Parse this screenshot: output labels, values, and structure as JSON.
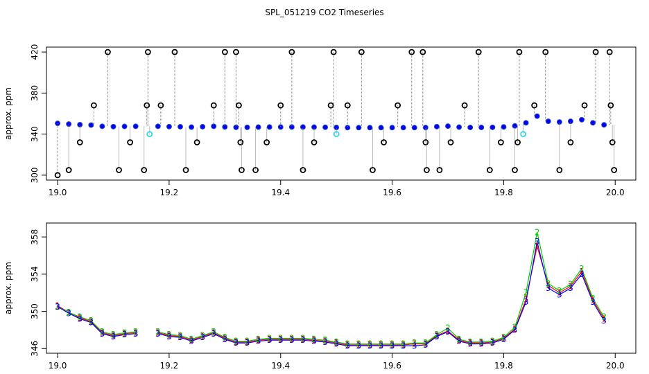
{
  "title": "SPL_051219  CO2 Timeseries",
  "chart_data": [
    {
      "type": "scatter",
      "ylabel": "approx. ppm",
      "xlim": [
        18.98,
        20.037
      ],
      "ylim": [
        295.2,
        424.8
      ],
      "xticks": [
        {
          "value": 19.0,
          "label": "19.0"
        },
        {
          "value": 19.2,
          "label": "19.2"
        },
        {
          "value": 19.4,
          "label": "19.4"
        },
        {
          "value": 19.6,
          "label": "19.6"
        },
        {
          "value": 19.8,
          "label": "19.8"
        },
        {
          "value": 20.0,
          "label": "20.0"
        }
      ],
      "yticks": [
        300,
        340,
        380,
        420
      ],
      "series": [
        {
          "color": "#0000ff",
          "marker": "filled",
          "x": [
            19.0,
            19.02,
            19.04,
            19.06,
            19.08,
            19.1,
            19.12,
            19.14,
            19.16,
            19.18,
            19.2,
            19.22,
            19.24,
            19.26,
            19.28,
            19.3,
            19.32,
            19.34,
            19.36,
            19.38,
            19.4,
            19.42,
            19.44,
            19.46,
            19.48,
            19.5,
            19.52,
            19.54,
            19.56,
            19.58,
            19.6,
            19.62,
            19.64,
            19.66,
            19.68,
            19.7,
            19.72,
            19.74,
            19.76,
            19.78,
            19.8,
            19.82,
            19.84,
            19.86,
            19.88,
            19.9,
            19.92,
            19.94,
            19.96,
            19.98
          ],
          "values": [
            350.5,
            349.8,
            349.2,
            348.8,
            347.6,
            347.3,
            347.5,
            347.6,
            null,
            347.6,
            347.3,
            347.2,
            346.8,
            347.2,
            347.6,
            347.0,
            346.6,
            346.6,
            346.8,
            346.9,
            346.9,
            346.9,
            346.9,
            346.8,
            346.7,
            346.5,
            346.3,
            346.3,
            346.3,
            346.3,
            346.3,
            346.3,
            346.3,
            346.4,
            347.3,
            347.8,
            346.8,
            346.5,
            346.5,
            346.6,
            347.0,
            348.0,
            351.0,
            357.5,
            352.5,
            351.8,
            352.5,
            354.0,
            351.0,
            349.0
          ]
        },
        {
          "color": "#000000",
          "marker": "open",
          "x": [
            19.0,
            19.02,
            19.04,
            19.065,
            19.09,
            19.11,
            19.13,
            19.155,
            19.16,
            19.162,
            19.185,
            19.21,
            19.23,
            19.25,
            19.28,
            19.3,
            19.32,
            19.325,
            19.328,
            19.33,
            19.355,
            19.375,
            19.4,
            19.42,
            19.44,
            19.46,
            19.49,
            19.495,
            19.52,
            19.545,
            19.565,
            19.585,
            19.61,
            19.635,
            19.655,
            19.66,
            19.662,
            19.685,
            19.705,
            19.73,
            19.755,
            19.775,
            19.795,
            19.82,
            19.825,
            19.828,
            19.855,
            19.875,
            19.9,
            19.92,
            19.945,
            19.965,
            19.99,
            19.992,
            19.995,
            19.998
          ],
          "values": [
            300,
            305,
            332,
            368,
            420,
            305,
            332,
            305,
            368,
            420,
            368,
            420,
            305,
            332,
            368,
            420,
            420,
            368,
            332,
            305,
            305,
            332,
            368,
            420,
            305,
            332,
            368,
            420,
            368,
            420,
            305,
            332,
            368,
            420,
            420,
            332,
            305,
            305,
            332,
            368,
            420,
            305,
            332,
            305,
            332,
            420,
            368,
            420,
            305,
            332,
            368,
            420,
            420,
            368,
            332,
            305
          ]
        },
        {
          "color": "#33d6e6",
          "marker": "open",
          "x": [
            19.165,
            19.5,
            19.835
          ],
          "values": [
            340,
            340,
            340
          ]
        }
      ]
    },
    {
      "type": "line",
      "ylabel": "approx. ppm",
      "xlim": [
        18.98,
        20.037
      ],
      "ylim": [
        345.5,
        359.5
      ],
      "xticks": [
        {
          "value": 19.0,
          "label": "19.0"
        },
        {
          "value": 19.2,
          "label": "19.2"
        },
        {
          "value": 19.4,
          "label": "19.4"
        },
        {
          "value": 19.6,
          "label": "19.6"
        },
        {
          "value": 19.8,
          "label": "19.8"
        },
        {
          "value": 20.0,
          "label": "20.0"
        }
      ],
      "yticks": [
        346,
        350,
        354,
        358
      ],
      "x": [
        19.0,
        19.02,
        19.04,
        19.06,
        19.08,
        19.1,
        19.12,
        19.14,
        19.16,
        19.18,
        19.2,
        19.22,
        19.24,
        19.26,
        19.28,
        19.3,
        19.32,
        19.34,
        19.36,
        19.38,
        19.4,
        19.42,
        19.44,
        19.46,
        19.48,
        19.5,
        19.52,
        19.54,
        19.56,
        19.58,
        19.6,
        19.62,
        19.64,
        19.66,
        19.68,
        19.7,
        19.72,
        19.74,
        19.76,
        19.78,
        19.8,
        19.82,
        19.84,
        19.86,
        19.88,
        19.9,
        19.92,
        19.94,
        19.96,
        19.98
      ],
      "series": [
        {
          "color": "#ff0000",
          "pch": "1",
          "values": [
            350.6,
            349.9,
            349.3,
            348.9,
            347.7,
            347.4,
            347.6,
            347.7,
            null,
            347.7,
            347.4,
            347.3,
            346.9,
            347.3,
            347.7,
            347.1,
            346.7,
            346.7,
            346.9,
            347.0,
            347.0,
            347.0,
            347.0,
            346.9,
            346.8,
            346.6,
            346.4,
            346.4,
            346.4,
            346.4,
            346.4,
            346.4,
            346.5,
            346.5,
            347.4,
            347.9,
            346.9,
            346.6,
            346.6,
            346.7,
            347.1,
            348.1,
            351.3,
            357.0,
            352.8,
            352.0,
            352.7,
            354.3,
            351.2,
            349.2
          ]
        },
        {
          "color": "#00cd00",
          "pch": "2",
          "values": [
            350.5,
            349.9,
            349.4,
            349.0,
            347.8,
            347.5,
            347.7,
            347.8,
            null,
            347.8,
            347.5,
            347.4,
            347.0,
            347.4,
            347.8,
            347.2,
            346.8,
            346.8,
            347.0,
            347.1,
            347.1,
            347.1,
            347.1,
            347.0,
            346.9,
            346.7,
            346.5,
            346.5,
            346.5,
            346.5,
            346.5,
            346.5,
            346.6,
            346.6,
            347.5,
            348.2,
            347.0,
            346.7,
            346.7,
            346.8,
            347.2,
            348.3,
            352.0,
            358.5,
            353.0,
            352.2,
            352.9,
            354.6,
            351.4,
            349.4
          ]
        },
        {
          "color": "#0000ff",
          "pch": "3",
          "values": [
            350.5,
            349.8,
            349.2,
            348.8,
            347.6,
            347.3,
            347.5,
            347.6,
            null,
            347.6,
            347.3,
            347.2,
            346.8,
            347.2,
            347.6,
            347.0,
            346.6,
            346.6,
            346.8,
            346.9,
            346.9,
            346.9,
            346.9,
            346.8,
            346.7,
            346.5,
            346.3,
            346.3,
            346.3,
            346.3,
            346.3,
            346.3,
            346.3,
            346.4,
            347.3,
            347.8,
            346.8,
            346.5,
            346.5,
            346.6,
            347.0,
            348.0,
            351.0,
            357.5,
            352.5,
            351.8,
            352.5,
            354.0,
            351.0,
            349.0
          ]
        }
      ]
    }
  ]
}
